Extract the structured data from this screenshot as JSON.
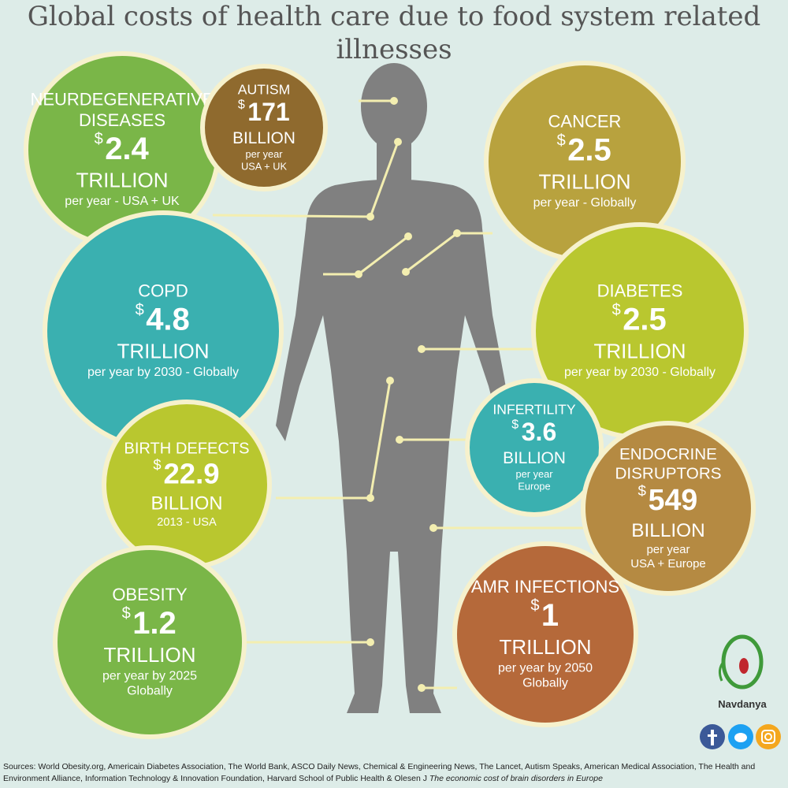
{
  "header": {
    "title": "Global costs of health care due to food system related illnesses"
  },
  "circles": [
    {
      "label": [
        "NEURDEGENERATIVE",
        "DISEASES"
      ],
      "currency": "$",
      "amount": "2.4",
      "unit": "TRILLION",
      "details": [
        "per year - USA + UK"
      ]
    },
    {
      "label": [
        "AUTISM"
      ],
      "currency": "$",
      "amount": "171",
      "unit": "BILLION",
      "details": [
        "per year",
        "USA + UK"
      ]
    },
    {
      "label": [
        "CANCER"
      ],
      "currency": "$",
      "amount": "2.5",
      "unit": "TRILLION",
      "details": [
        "per year - Globally"
      ]
    },
    {
      "label": [
        "COPD"
      ],
      "currency": "$",
      "amount": "4.8",
      "unit": "TRILLION",
      "details": [
        "per year by 2030 - Globally"
      ]
    },
    {
      "label": [
        "DIABETES"
      ],
      "currency": "$",
      "amount": "2.5",
      "unit": "TRILLION",
      "details": [
        "per year by 2030 - Globally"
      ]
    },
    {
      "label": [
        "BIRTH DEFECTS"
      ],
      "currency": "$",
      "amount": "22.9",
      "unit": "BILLION",
      "details": [
        "2013 - USA"
      ]
    },
    {
      "label": [
        "INFERTILITY"
      ],
      "currency": "$",
      "amount": "3.6",
      "unit": "BILLION",
      "details": [
        "per year",
        "Europe"
      ]
    },
    {
      "label": [
        "ENDOCRINE",
        "DISRUPTORS"
      ],
      "currency": "$",
      "amount": "549",
      "unit": "BILLION",
      "details": [
        "per year",
        "USA + Europe"
      ]
    },
    {
      "label": [
        "OBESITY"
      ],
      "currency": "$",
      "amount": "1.2",
      "unit": "TRILLION",
      "details": [
        "per year by 2025",
        "Globally"
      ]
    },
    {
      "label": [
        "AMR INFECTIONS"
      ],
      "currency": "$",
      "amount": "1",
      "unit": "TRILLION",
      "details": [
        "per year by 2050",
        "Globally"
      ]
    }
  ],
  "logo": {
    "name": "Navdanya"
  },
  "footer": {
    "sources": "Sources: World Obesity.org, Americain Diabetes Association, The World Bank, ASCO Daily News,  Chemical & Engineering News, The Lancet, Autism Speaks, American Medical Association, The Health and Environment Alliance, Information Technology & Innovation Foundation, Harvard School of Public Health & Olesen J",
    "sources_title": "The economic cost of brain disorders in Europe"
  }
}
